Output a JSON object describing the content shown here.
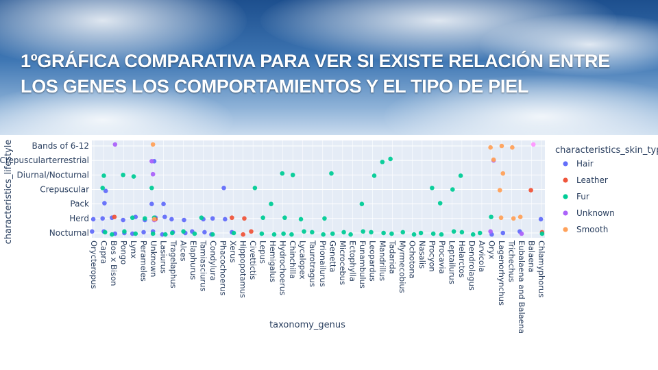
{
  "slide": {
    "title": "1ºGRÁFICA COMPARATIVA PARA VER SI EXISTE RELACIÓN ENTRE LOS GENES LOS COMPORTAMIENTOS Y EL TIPO DE PIEL"
  },
  "colors": {
    "plot_background": "#e5ecf6",
    "gridline": "#ffffff",
    "text": "#2a3f5f"
  },
  "chart_data": {
    "type": "scatter",
    "xlabel": "taxonomy_genus",
    "ylabel": "characteristics_lifestyle",
    "legend_title": "characteristics_skin_type",
    "legend_position": "right",
    "grid": true,
    "y_categories": [
      "Nocturnal",
      "Herd",
      "Pack",
      "Crepuscular",
      "Diurnal/Nocturnal",
      "Crepuscularterrestrial",
      "Bands of 6-12"
    ],
    "x_tick_labels": [
      "Orycteropus",
      "Capra",
      "Bos x Bison",
      "Pongo",
      "Lynx",
      "Perameles",
      "Unknown",
      "Lasiurus",
      "Tragelaphus",
      "Alces",
      "Elaphurus",
      "Tamiasciurus",
      "Condylura",
      "Phacochoerus",
      "Xerus",
      "Hippopotamus",
      "Civettictis",
      "Lepus",
      "Hemigalus",
      "Hydrochoerus",
      "Chinchilla",
      "Lycalopex",
      "Taurotragus",
      "Prionailurus",
      "Genetta",
      "Microcebus",
      "Ectophylla",
      "Funambulus",
      "Leopardus",
      "Mandrillus",
      "Tadarida",
      "Myrmecobius",
      "Ochotona",
      "Nasalis",
      "Procyon",
      "Procavia",
      "Leptailurus",
      "Helarctos",
      "Dendrolagus",
      "Arvicola",
      "Oryx",
      "Lagenorhynchus",
      "Trichechus",
      "Eubalaena and Balaena",
      "Balaena",
      "Chlamyphorus"
    ],
    "series": [
      {
        "name": "Hair",
        "color": "#636efa",
        "points": [
          [
            "Orycteropus",
            "Nocturnal"
          ],
          [
            "Orycteropus",
            "Herd"
          ],
          [
            "Capra",
            "Pack"
          ],
          [
            "Capra",
            "Crepuscular"
          ],
          [
            "Capra",
            "Herd"
          ],
          [
            "Capra",
            "Nocturnal"
          ],
          [
            "Bos x Bison",
            "Nocturnal"
          ],
          [
            "Bos x Bison",
            "Herd"
          ],
          [
            "Pongo",
            "Herd"
          ],
          [
            "Pongo",
            "Nocturnal"
          ],
          [
            "Lynx",
            "Herd"
          ],
          [
            "Lynx",
            "Nocturnal"
          ],
          [
            "Perameles",
            "Nocturnal"
          ],
          [
            "Perameles",
            "Herd"
          ],
          [
            "Unknown",
            "Pack"
          ],
          [
            "Unknown",
            "Nocturnal"
          ],
          [
            "Unknown",
            "Crepuscularterrestrial"
          ],
          [
            "Unknown",
            "Herd"
          ],
          [
            "Lasiurus",
            "Nocturnal"
          ],
          [
            "Lasiurus",
            "Pack"
          ],
          [
            "Lasiurus",
            "Herd"
          ],
          [
            "Tragelaphus",
            "Herd"
          ],
          [
            "Tragelaphus",
            "Nocturnal"
          ],
          [
            "Alces",
            "Herd"
          ],
          [
            "Alces",
            "Nocturnal"
          ],
          [
            "Elaphurus",
            "Nocturnal"
          ],
          [
            "Tamiasciurus",
            "Herd"
          ],
          [
            "Tamiasciurus",
            "Nocturnal"
          ],
          [
            "Condylura",
            "Nocturnal"
          ],
          [
            "Condylura",
            "Herd"
          ],
          [
            "Phacochoerus",
            "Crepuscular"
          ],
          [
            "Phacochoerus",
            "Herd"
          ],
          [
            "Xerus",
            "Nocturnal"
          ],
          [
            "Oryx",
            "Nocturnal"
          ],
          [
            "Lagenorhynchus",
            "Nocturnal"
          ],
          [
            "Eubalaena and Balaena",
            "Nocturnal"
          ],
          [
            "Chlamyphorus",
            "Herd"
          ]
        ]
      },
      {
        "name": "Leather",
        "color": "#ef553b",
        "points": [
          [
            "Bos x Bison",
            "Herd"
          ],
          [
            "Unknown",
            "Herd"
          ],
          [
            "Xerus",
            "Herd"
          ],
          [
            "Hippopotamus",
            "Nocturnal"
          ],
          [
            "Hippopotamus",
            "Herd"
          ],
          [
            "Civettictis",
            "Nocturnal"
          ],
          [
            "Balaena",
            "Crepuscular"
          ],
          [
            "Chlamyphorus",
            "Nocturnal"
          ]
        ]
      },
      {
        "name": "Fur",
        "color": "#00cc96",
        "points": [
          [
            "Capra",
            "Crepuscular"
          ],
          [
            "Capra",
            "Diurnal/Nocturnal"
          ],
          [
            "Capra",
            "Nocturnal"
          ],
          [
            "Bos x Bison",
            "Nocturnal"
          ],
          [
            "Pongo",
            "Diurnal/Nocturnal"
          ],
          [
            "Pongo",
            "Nocturnal"
          ],
          [
            "Lynx",
            "Nocturnal"
          ],
          [
            "Lynx",
            "Herd"
          ],
          [
            "Lynx",
            "Diurnal/Nocturnal"
          ],
          [
            "Perameles",
            "Herd"
          ],
          [
            "Unknown",
            "Crepuscular"
          ],
          [
            "Unknown",
            "Nocturnal"
          ],
          [
            "Unknown",
            "Herd"
          ],
          [
            "Lasiurus",
            "Nocturnal"
          ],
          [
            "Tragelaphus",
            "Nocturnal"
          ],
          [
            "Alces",
            "Nocturnal"
          ],
          [
            "Elaphurus",
            "Nocturnal"
          ],
          [
            "Tamiasciurus",
            "Herd"
          ],
          [
            "Condylura",
            "Nocturnal"
          ],
          [
            "Xerus",
            "Nocturnal"
          ],
          [
            "Civettictis",
            "Crepuscular"
          ],
          [
            "Lepus",
            "Nocturnal"
          ],
          [
            "Lepus",
            "Herd"
          ],
          [
            "Hemigalus",
            "Nocturnal"
          ],
          [
            "Hemigalus",
            "Pack"
          ],
          [
            "Hydrochoerus",
            "Diurnal/Nocturnal"
          ],
          [
            "Hydrochoerus",
            "Nocturnal"
          ],
          [
            "Hydrochoerus",
            "Herd"
          ],
          [
            "Chinchilla",
            "Nocturnal"
          ],
          [
            "Chinchilla",
            "Diurnal/Nocturnal"
          ],
          [
            "Lycalopex",
            "Nocturnal"
          ],
          [
            "Lycalopex",
            "Herd"
          ],
          [
            "Taurotragus",
            "Nocturnal"
          ],
          [
            "Prionailurus",
            "Nocturnal"
          ],
          [
            "Prionailurus",
            "Herd"
          ],
          [
            "Genetta",
            "Diurnal/Nocturnal"
          ],
          [
            "Genetta",
            "Nocturnal"
          ],
          [
            "Microcebus",
            "Nocturnal"
          ],
          [
            "Ectophylla",
            "Nocturnal"
          ],
          [
            "Funambulus",
            "Pack"
          ],
          [
            "Funambulus",
            "Nocturnal"
          ],
          [
            "Leopardus",
            "Diurnal/Nocturnal"
          ],
          [
            "Leopardus",
            "Nocturnal"
          ],
          [
            "Mandrillus",
            "Crepuscularterrestrial"
          ],
          [
            "Mandrillus",
            "Nocturnal"
          ],
          [
            "Tadarida",
            "Crepuscularterrestrial"
          ],
          [
            "Tadarida",
            "Nocturnal"
          ],
          [
            "Myrmecobius",
            "Nocturnal"
          ],
          [
            "Ochotona",
            "Nocturnal"
          ],
          [
            "Nasalis",
            "Nocturnal"
          ],
          [
            "Procyon",
            "Crepuscular"
          ],
          [
            "Procyon",
            "Nocturnal"
          ],
          [
            "Procavia",
            "Pack"
          ],
          [
            "Procavia",
            "Nocturnal"
          ],
          [
            "Leptailurus",
            "Crepuscular"
          ],
          [
            "Leptailurus",
            "Nocturnal"
          ],
          [
            "Helarctos",
            "Diurnal/Nocturnal"
          ],
          [
            "Helarctos",
            "Nocturnal"
          ],
          [
            "Dendrolagus",
            "Nocturnal"
          ],
          [
            "Arvicola",
            "Nocturnal"
          ],
          [
            "Oryx",
            "Herd"
          ],
          [
            "Chlamyphorus",
            "Nocturnal"
          ]
        ]
      },
      {
        "name": "Unknown",
        "color": "#ab63fa",
        "points": [
          [
            "Bos x Bison",
            "Bands of 6-12"
          ],
          [
            "Unknown",
            "Crepuscularterrestrial"
          ],
          [
            "Unknown",
            "Diurnal/Nocturnal"
          ],
          [
            "Unknown",
            "Herd"
          ],
          [
            "Oryx",
            "Crepuscularterrestrial"
          ],
          [
            "Oryx",
            "Nocturnal"
          ],
          [
            "Eubalaena and Balaena",
            "Nocturnal"
          ]
        ]
      },
      {
        "name": "Smooth",
        "color": "#ffa15a",
        "points": [
          [
            "Unknown",
            "Bands of 6-12"
          ],
          [
            "Unknown",
            "Herd"
          ],
          [
            "Oryx",
            "Crepuscularterrestrial"
          ],
          [
            "Oryx",
            "Bands of 6-12"
          ],
          [
            "Lagenorhynchus",
            "Bands of 6-12"
          ],
          [
            "Lagenorhynchus",
            "Diurnal/Nocturnal"
          ],
          [
            "Lagenorhynchus",
            "Crepuscular"
          ],
          [
            "Lagenorhynchus",
            "Herd"
          ],
          [
            "Trichechus",
            "Bands of 6-12"
          ],
          [
            "Trichechus",
            "Herd"
          ],
          [
            "Eubalaena and Balaena",
            "Herd"
          ]
        ]
      },
      {
        "name": "",
        "color": "#ff97ff",
        "points": [
          [
            "Balaena",
            "Bands of 6-12"
          ]
        ]
      }
    ]
  }
}
